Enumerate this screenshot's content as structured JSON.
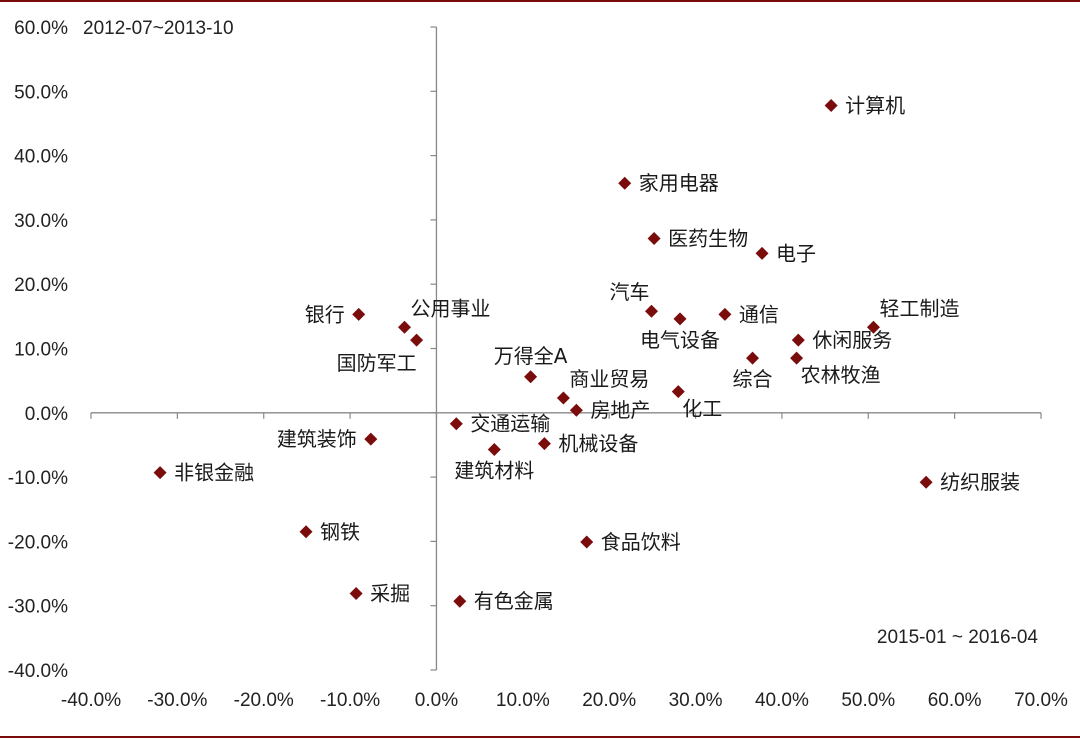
{
  "chart_data": {
    "type": "scatter",
    "annotations": {
      "top_left": "2012-07~2013-10",
      "bottom_right": "2015-01 ~ 2016-04"
    },
    "xlim": [
      -40,
      70
    ],
    "ylim": [
      -40,
      60
    ],
    "x_ticks": [
      {
        "v": -40,
        "label": "-40.0%"
      },
      {
        "v": -30,
        "label": "-30.0%"
      },
      {
        "v": -20,
        "label": "-20.0%"
      },
      {
        "v": -10,
        "label": "-10.0%"
      },
      {
        "v": 0,
        "label": "0.0%"
      },
      {
        "v": 10,
        "label": "10.0%"
      },
      {
        "v": 20,
        "label": "20.0%"
      },
      {
        "v": 30,
        "label": "30.0%"
      },
      {
        "v": 40,
        "label": "40.0%"
      },
      {
        "v": 50,
        "label": "50.0%"
      },
      {
        "v": 60,
        "label": "60.0%"
      },
      {
        "v": 70,
        "label": "70.0%"
      }
    ],
    "y_ticks": [
      {
        "v": 60,
        "label": "60.0%"
      },
      {
        "v": 50,
        "label": "50.0%"
      },
      {
        "v": 40,
        "label": "40.0%"
      },
      {
        "v": 30,
        "label": "30.0%"
      },
      {
        "v": 20,
        "label": "20.0%"
      },
      {
        "v": 10,
        "label": "10.0%"
      },
      {
        "v": 0,
        "label": "0.0%"
      },
      {
        "v": -10,
        "label": "-10.0%"
      },
      {
        "v": -20,
        "label": "-20.0%"
      },
      {
        "v": -30,
        "label": "-30.0%"
      },
      {
        "v": -40,
        "label": "-40.0%"
      }
    ],
    "grid": false,
    "marker_color": "#7B0C0C",
    "points": [
      {
        "label": "计算机",
        "x": 45.7,
        "y": 47.8,
        "pos": "right"
      },
      {
        "label": "家用电器",
        "x": 21.8,
        "y": 35.7,
        "pos": "right"
      },
      {
        "label": "医药生物",
        "x": 25.2,
        "y": 27.1,
        "pos": "right"
      },
      {
        "label": "电子",
        "x": 37.7,
        "y": 24.8,
        "pos": "right"
      },
      {
        "label": "汽车",
        "x": 24.9,
        "y": 15.8,
        "pos": "above-left"
      },
      {
        "label": "通信",
        "x": 33.4,
        "y": 15.3,
        "pos": "right"
      },
      {
        "label": "电气设备",
        "x": 28.2,
        "y": 14.6,
        "pos": "below"
      },
      {
        "label": "轻工制造",
        "x": 50.6,
        "y": 13.3,
        "pos": "above-right"
      },
      {
        "label": "休闲服务",
        "x": 41.9,
        "y": 11.3,
        "pos": "right"
      },
      {
        "label": "综合",
        "x": 36.6,
        "y": 8.5,
        "pos": "below"
      },
      {
        "label": "农林牧渔",
        "x": 41.7,
        "y": 8.5,
        "pos": "below-right"
      },
      {
        "label": "银行",
        "x": -9.0,
        "y": 15.3,
        "pos": "left"
      },
      {
        "label": "公用事业",
        "x": -3.7,
        "y": 13.3,
        "pos": "above-right"
      },
      {
        "label": "国防军工",
        "x": -2.3,
        "y": 11.3,
        "pos": "below-left"
      },
      {
        "label": "万得全A",
        "x": 10.9,
        "y": 5.6,
        "pos": "above"
      },
      {
        "label": "商业贸易",
        "x": 14.7,
        "y": 2.3,
        "pos": "above-right"
      },
      {
        "label": "房地产",
        "x": 16.2,
        "y": 0.4,
        "pos": "right"
      },
      {
        "label": "化工",
        "x": 28.0,
        "y": 3.3,
        "pos": "below-right"
      },
      {
        "label": "交通运输",
        "x": 2.3,
        "y": -1.7,
        "pos": "right"
      },
      {
        "label": "机械设备",
        "x": 12.5,
        "y": -4.8,
        "pos": "right"
      },
      {
        "label": "建筑装饰",
        "x": -7.6,
        "y": -4.1,
        "pos": "left"
      },
      {
        "label": "建筑材料",
        "x": 6.7,
        "y": -5.7,
        "pos": "below"
      },
      {
        "label": "非银金融",
        "x": -32.0,
        "y": -9.3,
        "pos": "right"
      },
      {
        "label": "纺织服装",
        "x": 56.7,
        "y": -10.8,
        "pos": "right"
      },
      {
        "label": "钢铁",
        "x": -15.1,
        "y": -18.5,
        "pos": "right"
      },
      {
        "label": "食品饮料",
        "x": 17.4,
        "y": -20.1,
        "pos": "right"
      },
      {
        "label": "采掘",
        "x": -9.3,
        "y": -28.1,
        "pos": "right"
      },
      {
        "label": "有色金属",
        "x": 2.7,
        "y": -29.3,
        "pos": "right"
      }
    ]
  }
}
